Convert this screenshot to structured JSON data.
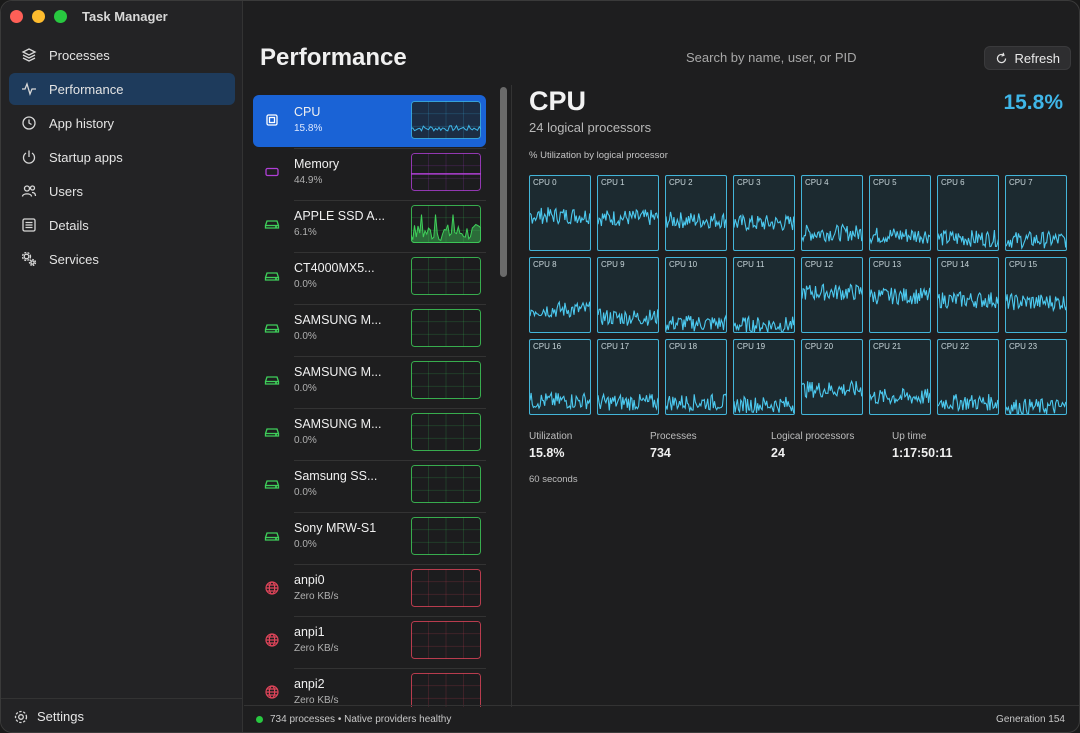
{
  "window": {
    "title": "Task Manager",
    "traffic_colors": [
      "#ff5f57",
      "#febc2e",
      "#28c840"
    ]
  },
  "sidebar": {
    "items": [
      {
        "label": "Processes",
        "icon": "layers-icon",
        "active": false
      },
      {
        "label": "Performance",
        "icon": "activity-icon",
        "active": true
      },
      {
        "label": "App history",
        "icon": "history-icon",
        "active": false
      },
      {
        "label": "Startup apps",
        "icon": "power-icon",
        "active": false
      },
      {
        "label": "Users",
        "icon": "users-icon",
        "active": false
      },
      {
        "label": "Details",
        "icon": "list-icon",
        "active": false
      },
      {
        "label": "Services",
        "icon": "gears-icon",
        "active": false
      }
    ],
    "settings_label": "Settings"
  },
  "header": {
    "title": "Performance",
    "search_placeholder": "Search by name, user, or PID",
    "refresh_label": "Refresh"
  },
  "devices": [
    {
      "name": "CPU",
      "sub": "15.8%",
      "kind": "cpu",
      "color": "#3fb6e8",
      "selected": true
    },
    {
      "name": "Memory",
      "sub": "44.9%",
      "kind": "memory",
      "color": "#b03fd6",
      "selected": false
    },
    {
      "name": "APPLE SSD A...",
      "sub": "6.1%",
      "kind": "disk",
      "color": "#3fcf5a",
      "selected": false
    },
    {
      "name": "CT4000MX5...",
      "sub": "0.0%",
      "kind": "disk",
      "color": "#3fcf5a",
      "selected": false
    },
    {
      "name": "SAMSUNG M...",
      "sub": "0.0%",
      "kind": "disk",
      "color": "#3fcf5a",
      "selected": false
    },
    {
      "name": "SAMSUNG M...",
      "sub": "0.0%",
      "kind": "disk",
      "color": "#3fcf5a",
      "selected": false
    },
    {
      "name": "SAMSUNG M...",
      "sub": "0.0%",
      "kind": "disk",
      "color": "#3fcf5a",
      "selected": false
    },
    {
      "name": "Samsung SS...",
      "sub": "0.0%",
      "kind": "disk",
      "color": "#3fcf5a",
      "selected": false
    },
    {
      "name": "Sony MRW-S1",
      "sub": "0.0%",
      "kind": "disk",
      "color": "#3fcf5a",
      "selected": false
    },
    {
      "name": "anpi0",
      "sub": "Zero KB/s",
      "kind": "network",
      "color": "#e0455a",
      "selected": false
    },
    {
      "name": "anpi1",
      "sub": "Zero KB/s",
      "kind": "network",
      "color": "#e0455a",
      "selected": false
    },
    {
      "name": "anpi2",
      "sub": "Zero KB/s",
      "kind": "network",
      "color": "#e0455a",
      "selected": false
    }
  ],
  "cpu": {
    "title": "CPU",
    "subtitle": "24 logical processors",
    "utilization_display": "15.8%",
    "grid_label": "% Utilization by logical processor",
    "core_labels": [
      "CPU 0",
      "CPU 1",
      "CPU 2",
      "CPU 3",
      "CPU 4",
      "CPU 5",
      "CPU 6",
      "CPU 7",
      "CPU 8",
      "CPU 9",
      "CPU 10",
      "CPU 11",
      "CPU 12",
      "CPU 13",
      "CPU 14",
      "CPU 15",
      "CPU 16",
      "CPU 17",
      "CPU 18",
      "CPU 19",
      "CPU 20",
      "CPU 21",
      "CPU 22",
      "CPU 23"
    ],
    "line_color": "#4cc9ef",
    "stats": [
      {
        "label": "Utilization",
        "value": "15.8%"
      },
      {
        "label": "Processes",
        "value": "734"
      },
      {
        "label": "Logical processors",
        "value": "24"
      },
      {
        "label": "Up time",
        "value": "1:17:50:11"
      }
    ],
    "time_window": "60 seconds"
  },
  "status": {
    "dot_color": "#28c840",
    "text": "734 processes • Native providers healthy",
    "generation": "Generation 154"
  }
}
